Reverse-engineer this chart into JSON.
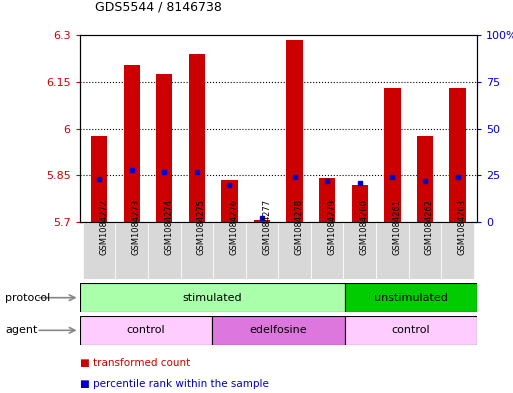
{
  "title": "GDS5544 / 8146738",
  "samples": [
    "GSM1084272",
    "GSM1084273",
    "GSM1084274",
    "GSM1084275",
    "GSM1084276",
    "GSM1084277",
    "GSM1084278",
    "GSM1084279",
    "GSM1084260",
    "GSM1084261",
    "GSM1084262",
    "GSM1084263"
  ],
  "transformed_count": [
    5.975,
    6.205,
    6.175,
    6.24,
    5.835,
    5.705,
    6.285,
    5.84,
    5.82,
    6.13,
    5.975,
    6.13
  ],
  "percentile_rank": [
    23,
    28,
    27,
    27,
    20,
    2,
    24,
    22,
    21,
    24,
    22,
    24
  ],
  "ylim_left": [
    5.7,
    6.3
  ],
  "ylim_right": [
    0,
    100
  ],
  "yticks_left": [
    5.7,
    5.85,
    6.0,
    6.15,
    6.3
  ],
  "yticks_right": [
    0,
    25,
    50,
    75,
    100
  ],
  "ytick_labels_left": [
    "5.7",
    "5.85",
    "6",
    "6.15",
    "6.3"
  ],
  "ytick_labels_right": [
    "0",
    "25",
    "50",
    "75",
    "100%"
  ],
  "hlines": [
    5.85,
    6.0,
    6.15
  ],
  "bar_color": "#cc0000",
  "dot_color": "#0000cc",
  "bar_width": 0.5,
  "protocol_groups": [
    {
      "label": "stimulated",
      "start": 0,
      "end": 8,
      "color": "#aaffaa"
    },
    {
      "label": "unstimulated",
      "start": 8,
      "end": 12,
      "color": "#00cc00"
    }
  ],
  "agent_groups": [
    {
      "label": "control",
      "start": 0,
      "end": 4,
      "color": "#ffccff"
    },
    {
      "label": "edelfosine",
      "start": 4,
      "end": 8,
      "color": "#dd77dd"
    },
    {
      "label": "control",
      "start": 8,
      "end": 12,
      "color": "#ffccff"
    }
  ],
  "legend_items": [
    {
      "label": "transformed count",
      "color": "#cc0000"
    },
    {
      "label": "percentile rank within the sample",
      "color": "#0000cc"
    }
  ],
  "protocol_label": "protocol",
  "agent_label": "agent",
  "grid_color": "#000000",
  "background_color": "#ffffff",
  "tick_color_left": "#cc0000",
  "tick_color_right": "#0000cc",
  "label_arrow_color": "#888888"
}
